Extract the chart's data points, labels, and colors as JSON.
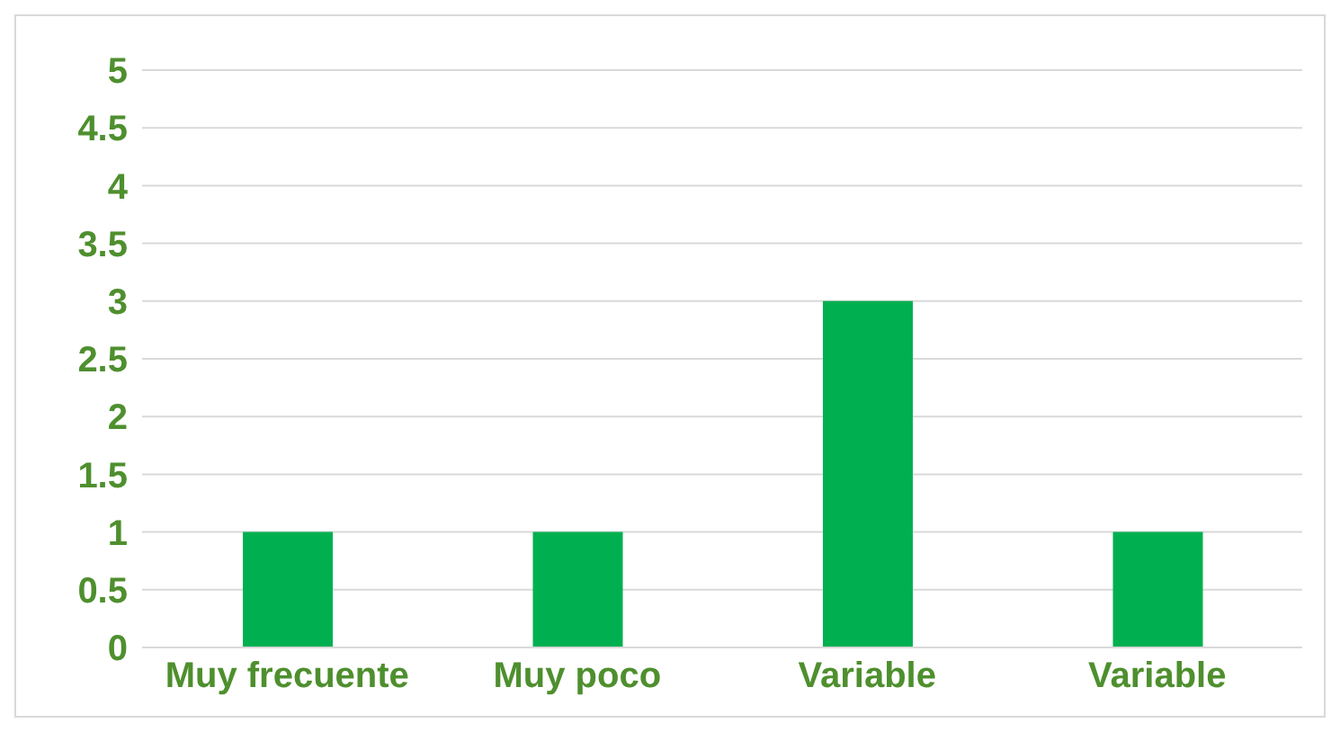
{
  "chart_data": {
    "type": "bar",
    "categories": [
      "Muy frecuente",
      "Muy poco",
      "Variable",
      "Variable"
    ],
    "values": [
      1,
      1,
      3,
      1
    ],
    "color": "#00b050",
    "ylim": [
      0,
      5
    ],
    "yticks": [
      0,
      0.5,
      1,
      1.5,
      2,
      2.5,
      3,
      3.5,
      4,
      4.5,
      5
    ],
    "grid": "y",
    "legend": false
  }
}
